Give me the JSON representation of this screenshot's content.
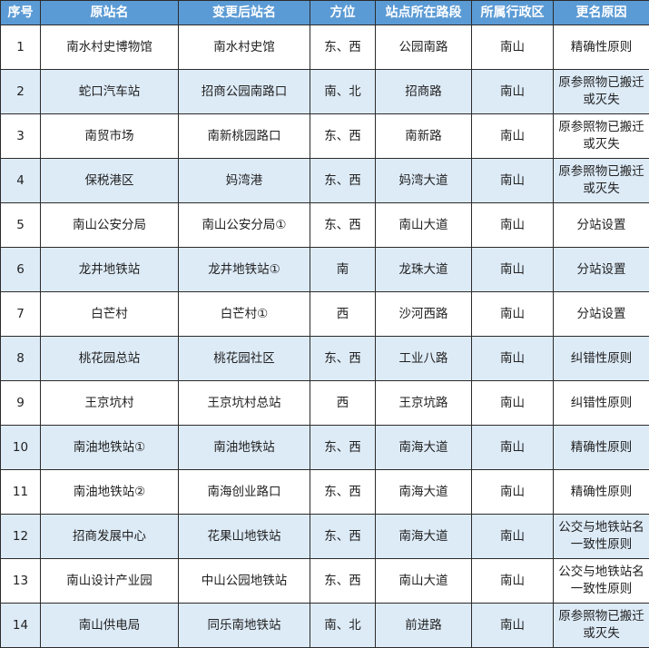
{
  "colors": {
    "header_bg": "#5b9bd5",
    "header_text": "#ffffff",
    "alt_row_bg": "#ddebf7",
    "border": "#2b2b2b"
  },
  "headers": [
    "序号",
    "原站名",
    "变更后站名",
    "方位",
    "站点所在路段",
    "所属行政区",
    "更名原因"
  ],
  "rows": [
    [
      "1",
      "南水村史博物馆",
      "南水村史馆",
      "东、西",
      "公园南路",
      "南山",
      "精确性原则"
    ],
    [
      "2",
      "蛇口汽车站",
      "招商公园南路口",
      "南、北",
      "招商路",
      "南山",
      "原参照物已搬迁或灭失"
    ],
    [
      "3",
      "南贸市场",
      "南新桃园路口",
      "东、西",
      "南新路",
      "南山",
      "原参照物已搬迁或灭失"
    ],
    [
      "4",
      "保税港区",
      "妈湾港",
      "东、西",
      "妈湾大道",
      "南山",
      "原参照物已搬迁或灭失"
    ],
    [
      "5",
      "南山公安分局",
      "南山公安分局①",
      "东、西",
      "南山大道",
      "南山",
      "分站设置"
    ],
    [
      "6",
      "龙井地铁站",
      "龙井地铁站①",
      "南",
      "龙珠大道",
      "南山",
      "分站设置"
    ],
    [
      "7",
      "白芒村",
      "白芒村①",
      "西",
      "沙河西路",
      "南山",
      "分站设置"
    ],
    [
      "8",
      "桃花园总站",
      "桃花园社区",
      "东、西",
      "工业八路",
      "南山",
      "纠错性原则"
    ],
    [
      "9",
      "王京坑村",
      "王京坑村总站",
      "西",
      "王京坑路",
      "南山",
      "纠错性原则"
    ],
    [
      "10",
      "南油地铁站①",
      "南油地铁站",
      "东、西",
      "南海大道",
      "南山",
      "精确性原则"
    ],
    [
      "11",
      "南油地铁站②",
      "南海创业路口",
      "东、西",
      "南海大道",
      "南山",
      "精确性原则"
    ],
    [
      "12",
      "招商发展中心",
      "花果山地铁站",
      "东、西",
      "南海大道",
      "南山",
      "公交与地铁站名一致性原则"
    ],
    [
      "13",
      "南山设计产业园",
      "中山公园地铁站",
      "东、西",
      "南山大道",
      "南山",
      "公交与地铁站名一致性原则"
    ],
    [
      "14",
      "南山供电局",
      "同乐南地铁站",
      "南、北",
      "前进路",
      "南山",
      "原参照物已搬迁或灭失"
    ]
  ]
}
